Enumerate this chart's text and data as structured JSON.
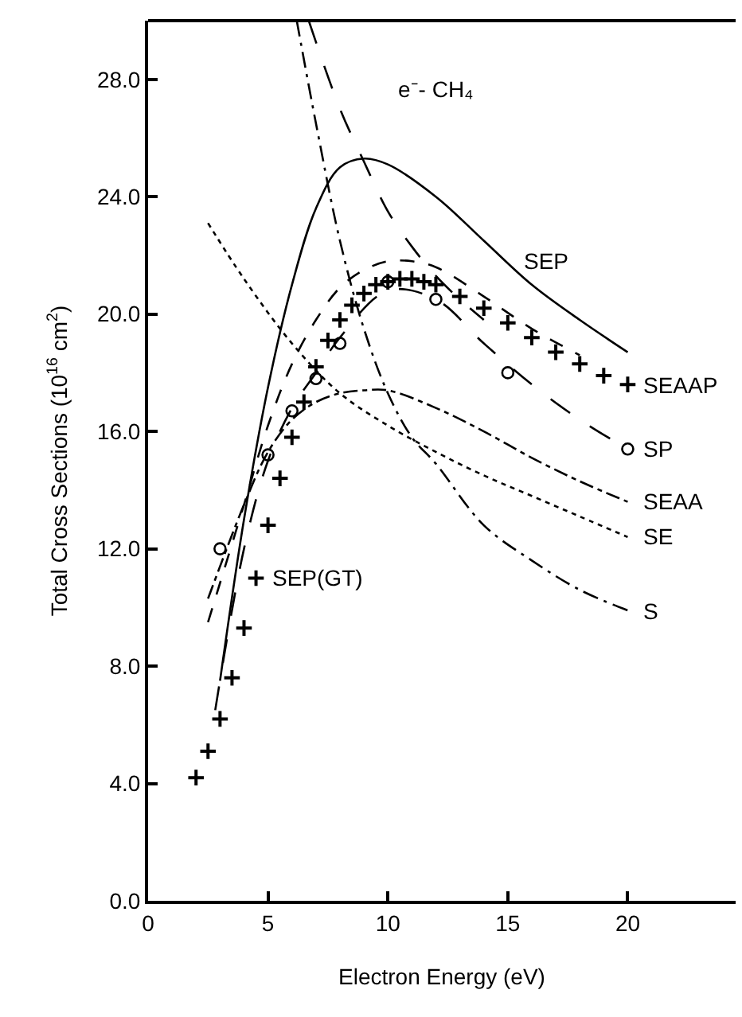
{
  "chart_data": {
    "type": "line",
    "xlabel": "Electron Energy (eV)",
    "ylabel": "Total Cross Sections (10$^{16}$ cm$^{2}$)",
    "xlim": [
      0,
      24.5
    ],
    "ylim": [
      0,
      30
    ],
    "xticks": [
      0,
      5,
      10,
      15,
      20
    ],
    "yticks": [
      {
        "value": 0,
        "label": "0.0"
      },
      {
        "value": 4,
        "label": "4.0"
      },
      {
        "value": 8,
        "label": "8.0"
      },
      {
        "value": 12,
        "label": "12.0"
      },
      {
        "value": 16,
        "label": "16.0"
      },
      {
        "value": 20,
        "label": "20.0"
      },
      {
        "value": 24,
        "label": "24.0"
      },
      {
        "value": 28,
        "label": "28.0"
      }
    ],
    "series": [
      {
        "line_style": "solid",
        "color": "#000000",
        "x": [
          3,
          4,
          5,
          6,
          7,
          8,
          9,
          10,
          12,
          14,
          16,
          18,
          20
        ],
        "values": [
          7.5,
          13,
          17.5,
          21,
          23.6,
          25,
          25.3,
          25.1,
          24,
          22.5,
          21,
          19.8,
          18.7
        ]
      },
      {
        "type": "scatter",
        "marker": "cross",
        "color": "#000000",
        "x": [
          2,
          2.5,
          3,
          3.5,
          4,
          4.5,
          5,
          5.5,
          6,
          6.5,
          7,
          7.5,
          8,
          8.5,
          9,
          9.5,
          10,
          10.5,
          11,
          11.5,
          12,
          13,
          14,
          15,
          16,
          17,
          18,
          19,
          20
        ],
        "values": [
          4.2,
          5.1,
          6.2,
          7.6,
          9.3,
          11,
          12.8,
          14.4,
          15.8,
          17,
          18.2,
          19.1,
          19.8,
          20.3,
          20.7,
          21,
          21.1,
          21.2,
          21.2,
          21.1,
          21,
          20.6,
          20.2,
          19.7,
          19.2,
          18.7,
          18.3,
          17.9,
          17.6
        ]
      },
      {
        "line_style": "dashed",
        "color": "#000000",
        "x": [
          2.5,
          4,
          5,
          6,
          7,
          8,
          9,
          10,
          11,
          12,
          14,
          16,
          18
        ],
        "values": [
          9.5,
          13.5,
          16.2,
          18.3,
          19.8,
          20.9,
          21.5,
          21.8,
          21.8,
          21.6,
          20.6,
          19.5,
          18.6
        ]
      },
      {
        "type": "scatter",
        "marker": "circle",
        "color": "#000000",
        "x": [
          3,
          5,
          6,
          7,
          8,
          10,
          12,
          15,
          20
        ],
        "values": [
          12,
          15.2,
          16.7,
          17.8,
          19,
          21.1,
          20.5,
          18,
          15.4
        ]
      },
      {
        "line_style": "longdash",
        "color": "#000000",
        "x": [
          2.8,
          4,
          5,
          6,
          7,
          8,
          10,
          12,
          14,
          16,
          18,
          20
        ],
        "values": [
          6.5,
          12,
          15,
          16.8,
          18,
          19.2,
          20.8,
          20.5,
          19,
          17.6,
          16.4,
          15.4
        ]
      },
      {
        "line_style": "dashdot",
        "color": "#000000",
        "x": [
          2.5,
          4,
          5,
          6,
          7,
          8,
          9,
          10,
          12,
          14,
          16,
          18,
          20
        ],
        "values": [
          10.3,
          13.5,
          15.3,
          16.4,
          17,
          17.3,
          17.4,
          17.4,
          16.8,
          16,
          15.1,
          14.3,
          13.6
        ]
      },
      {
        "line_style": "dotted",
        "color": "#000000",
        "x": [
          2.5,
          4,
          6,
          8,
          10,
          12,
          14,
          16,
          18,
          20
        ],
        "values": [
          23.1,
          21.2,
          19,
          17.3,
          16.2,
          15.3,
          14.5,
          13.8,
          13.1,
          12.4
        ]
      },
      {
        "line_style": "longdashdot",
        "color": "#000000",
        "x": [
          6.2,
          7,
          8,
          9,
          10,
          11,
          12,
          14,
          16,
          18,
          20
        ],
        "values": [
          30,
          26.5,
          22.5,
          19.5,
          17.3,
          15.8,
          14.9,
          12.8,
          11.6,
          10.6,
          9.9
        ]
      },
      {
        "line_style": "longdash",
        "color": "#000000",
        "x": [
          6.7,
          8,
          9,
          10,
          11,
          12,
          13,
          14
        ],
        "values": [
          30,
          27,
          25.2,
          23.5,
          22.3,
          21.3,
          20.5,
          19.8
        ]
      }
    ],
    "annotations": [
      "e⁻- CH₄",
      {
        "text": "SEP",
        "x": 15,
        "y": 21.8
      },
      {
        "text": "SEAAP",
        "x": 20,
        "y": 17.6
      },
      {
        "text": "SP",
        "x": 20,
        "y": 15.4
      },
      {
        "text": "SEAA",
        "x": 20,
        "y": 13.6
      },
      {
        "text": "SE",
        "x": 20,
        "y": 12.4
      },
      {
        "text": "S",
        "x": 20,
        "y": 9.9
      },
      {
        "text": "SEP(GT)",
        "x": 4.5,
        "y": 11
      }
    ]
  }
}
